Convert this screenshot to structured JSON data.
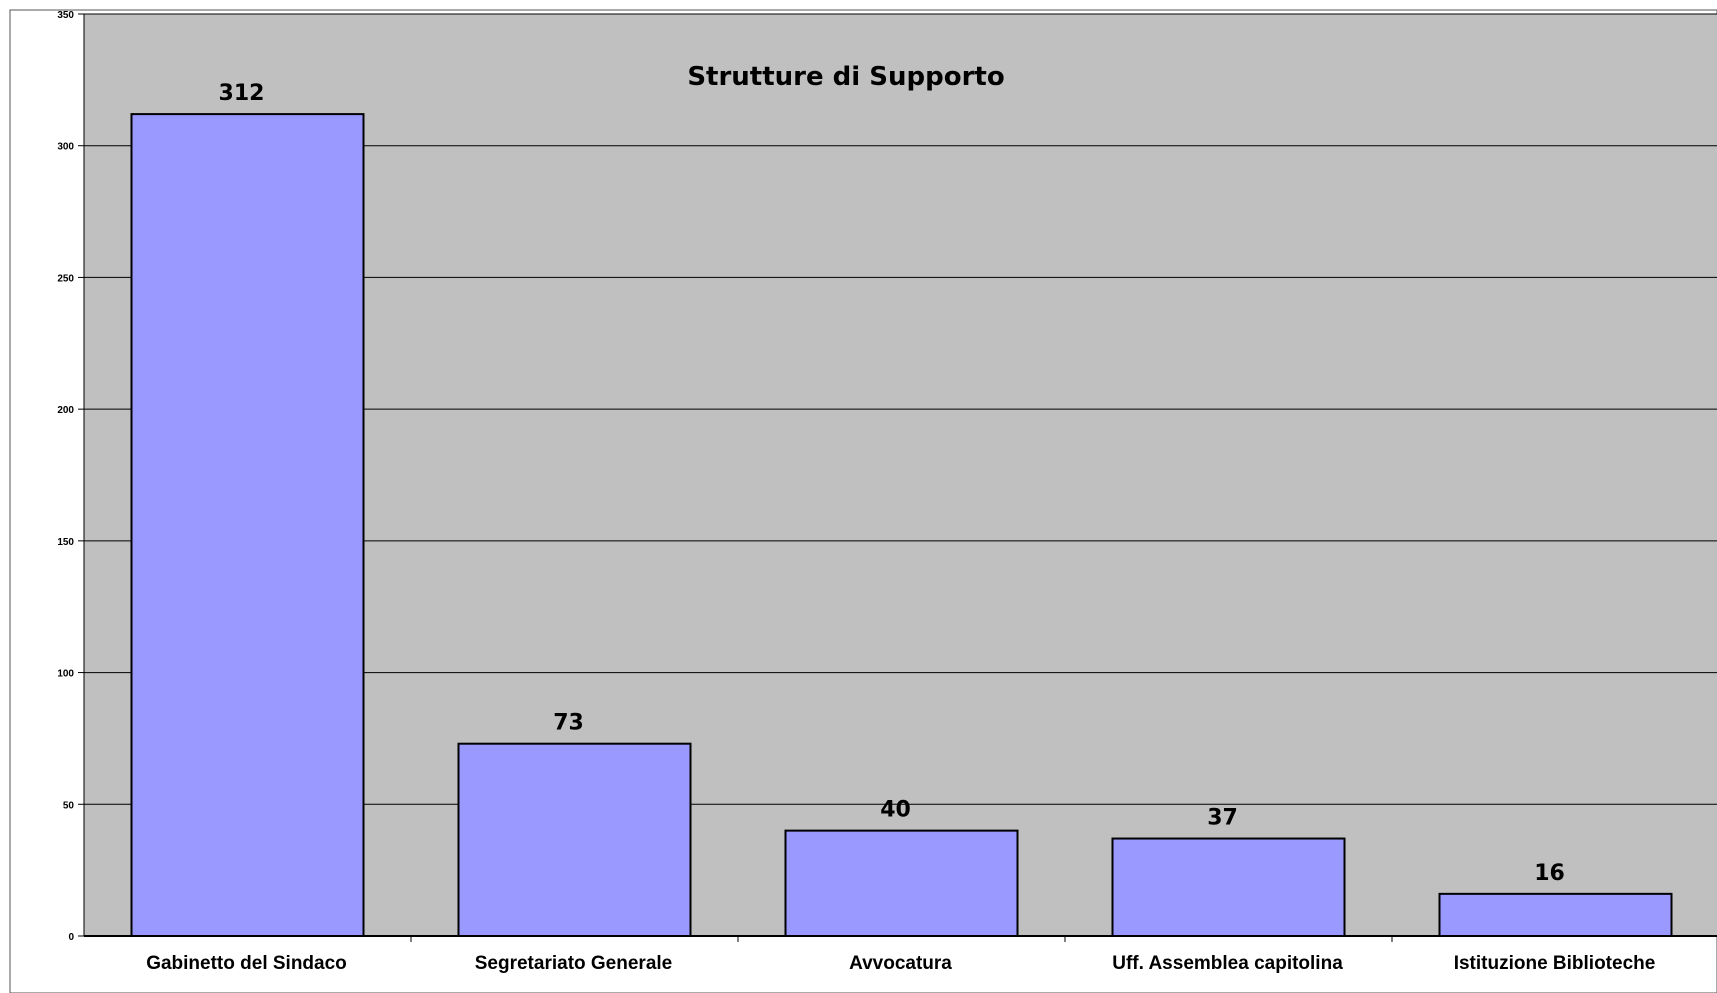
{
  "chart_data": {
    "type": "bar",
    "title": "Strutture di Supporto",
    "xlabel": "",
    "ylabel": "",
    "categories": [
      "Gabinetto del Sindaco",
      "Segretariato Generale",
      "Avvocatura",
      "Uff. Assemblea capitolina",
      "Istituzione Biblioteche"
    ],
    "values": [
      312,
      73,
      40,
      37,
      16
    ],
    "data_labels": [
      "312",
      "73",
      "40",
      "37",
      "16"
    ],
    "ylim": [
      0,
      350
    ],
    "yticks": [
      0,
      50,
      100,
      150,
      200,
      250,
      300,
      350
    ],
    "ytick_labels": [
      "0",
      "50",
      "100",
      "150",
      "200",
      "250",
      "300",
      "350"
    ],
    "grid": true,
    "legend": "none",
    "colors": {
      "bar_fill": "#9999ff",
      "bar_stroke": "#000000",
      "plot_background": "#c0c0c0",
      "page_background": "#ffffff",
      "gridline": "#000000"
    }
  }
}
